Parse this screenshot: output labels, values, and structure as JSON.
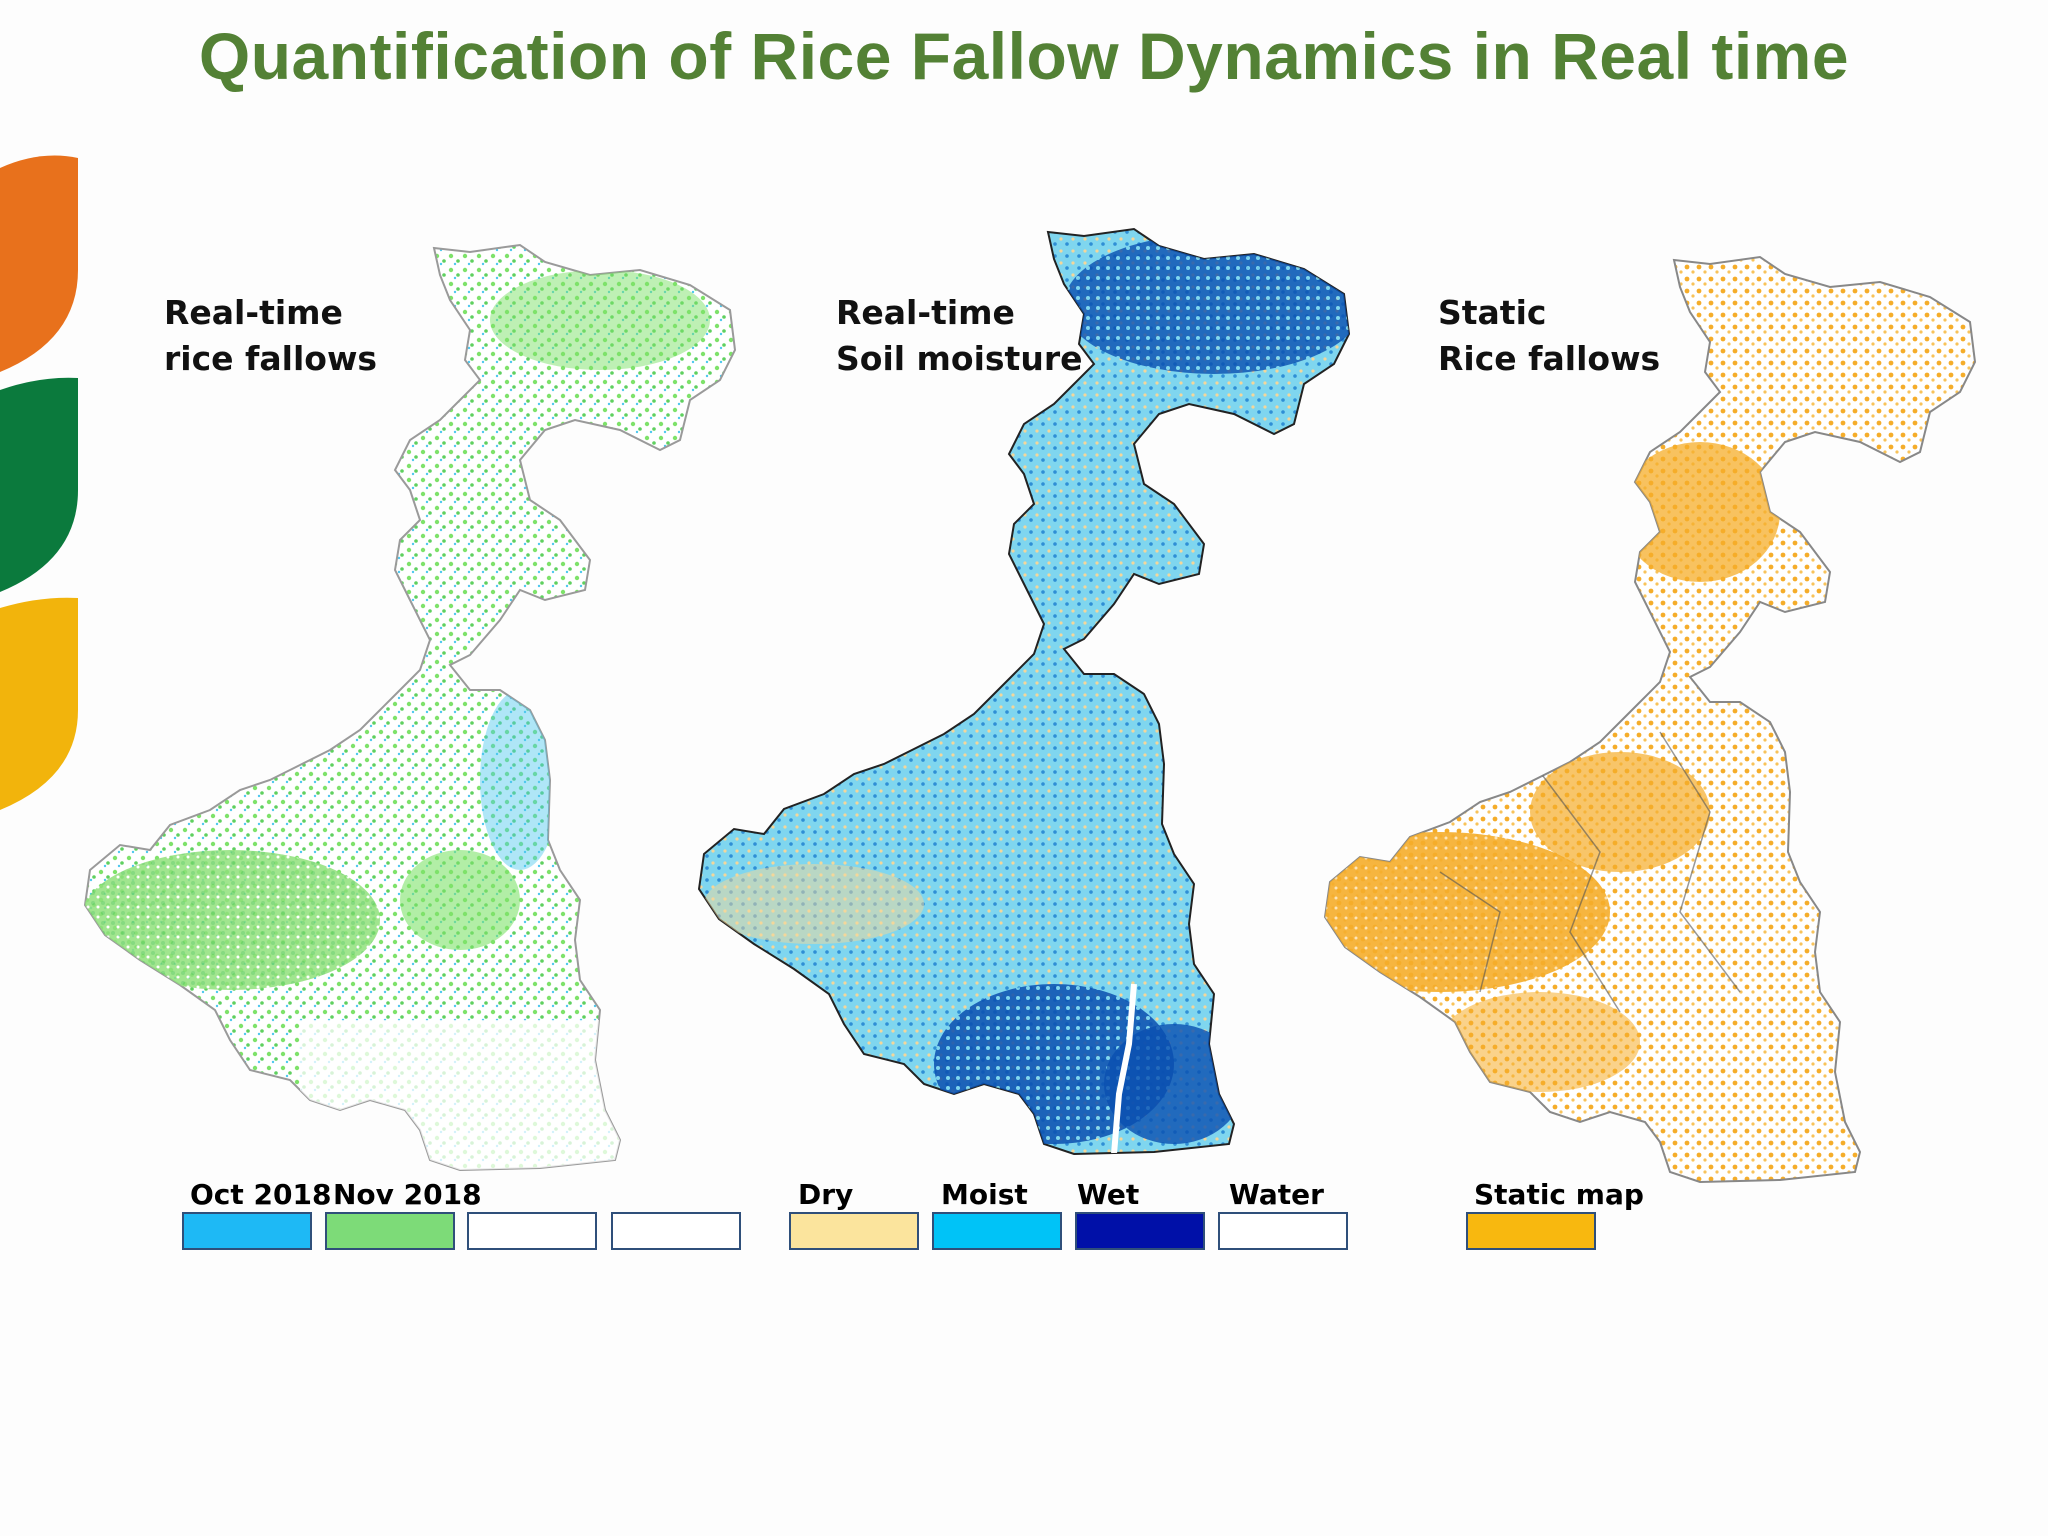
{
  "slide": {
    "title": "Quantification of Rice Fallow Dynamics in Real time",
    "accent_colors": [
      "#e8711c",
      "#0b7a3d",
      "#f2b40c"
    ]
  },
  "panels": [
    {
      "label": "Real-time\nrice fallows",
      "map_colors": [
        "#7ee26a",
        "#4ec8ee"
      ],
      "legend": [
        {
          "label": "Oct 2018",
          "color": "#1eb9f5"
        },
        {
          "label": "Nov 2018",
          "color": "#7ddb78"
        },
        {
          "label": "",
          "color": "#ffffff"
        },
        {
          "label": "",
          "color": "#ffffff"
        }
      ]
    },
    {
      "label": "Real-time\nSoil moisture",
      "map_colors": [
        "#7fd6ef",
        "#0a4fb0",
        "#f4d79a"
      ],
      "legend": [
        {
          "label": "Dry",
          "color": "#fbe49d"
        },
        {
          "label": "Moist",
          "color": "#00c3f7"
        },
        {
          "label": "Wet",
          "color": "#0010a8"
        },
        {
          "label": "Water",
          "color": "#ffffff"
        }
      ]
    },
    {
      "label": "Static\nRice fallows",
      "map_colors": [
        "#f5ad2a"
      ],
      "legend": [
        {
          "label": "Static map",
          "color": "#f8b80f"
        }
      ]
    }
  ]
}
